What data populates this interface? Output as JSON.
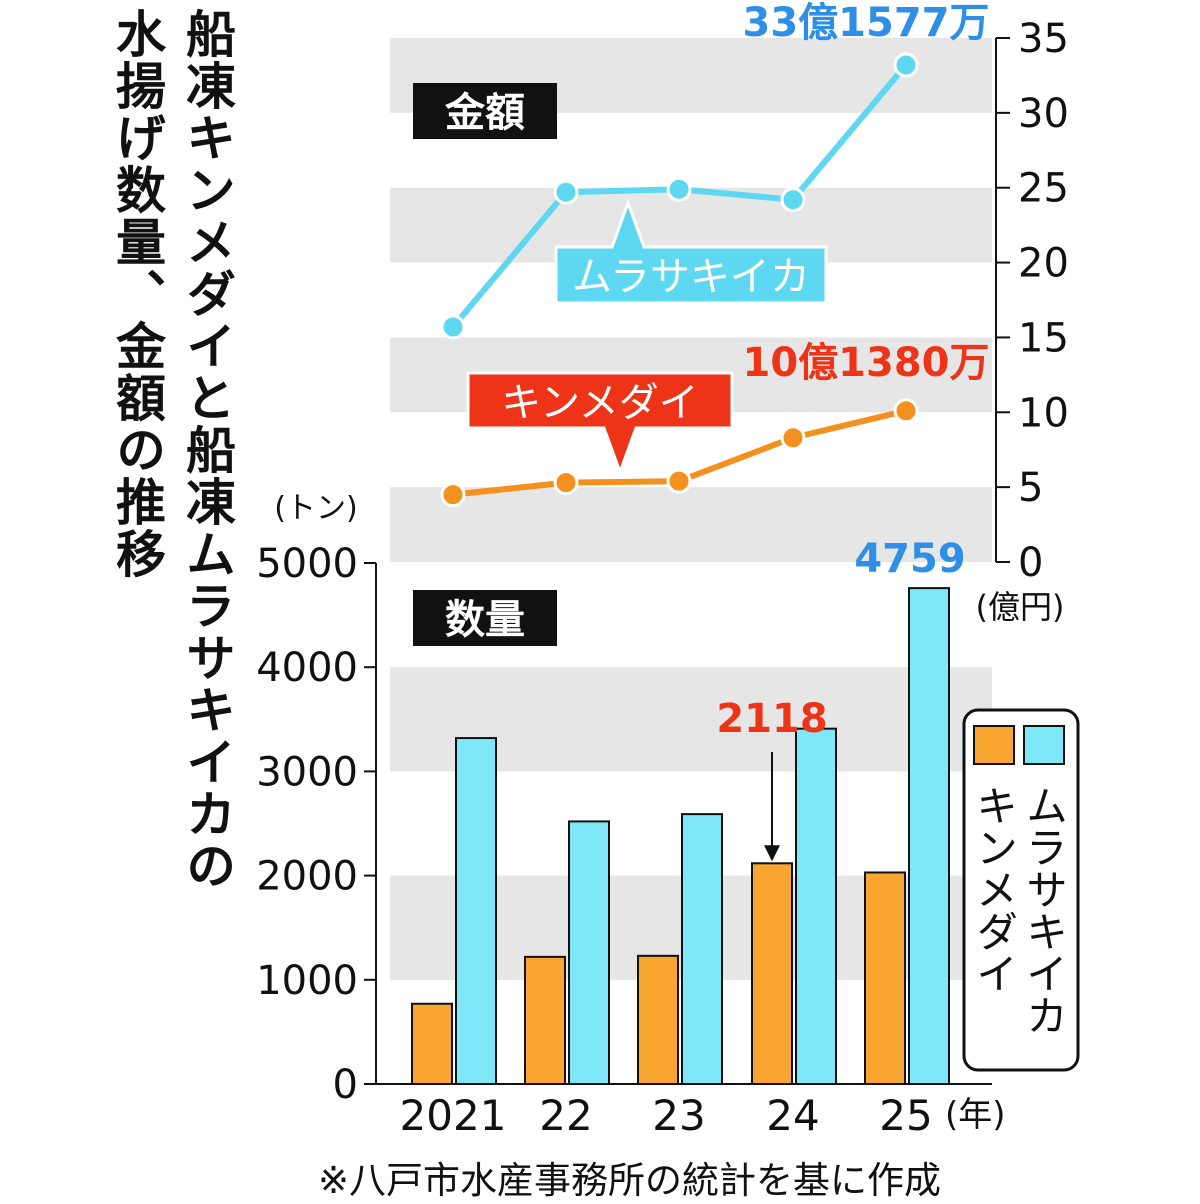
{
  "title_lines": [
    "船凍キンメダイと船凍ムラサキイカの",
    "水揚げ数量、金額の推移"
  ],
  "footnote": "※八戸市水産事務所の統計を基に作成",
  "colors": {
    "squid": "#5ed7f0",
    "squid_bar": "#7fe8f8",
    "kinmedai": "#f4901e",
    "kinmedai_bar": "#f9a532",
    "label_red": "#ee3418",
    "label_blue": "#2f8fe6",
    "band": "#e6e6e6"
  },
  "chart_data": [
    {
      "type": "line",
      "panel_label": "金額",
      "x": [
        "2021",
        "22",
        "23",
        "24",
        "25"
      ],
      "y_unit": "(億円)",
      "ylim": [
        0,
        35
      ],
      "y_ticks": [
        "0",
        "5",
        "10",
        "15",
        "20",
        "25",
        "30",
        "35"
      ],
      "series": [
        {
          "name": "ムラサキイカ",
          "values": [
            15.7,
            24.7,
            24.9,
            24.2,
            33.2
          ],
          "end_label": "33億1577万"
        },
        {
          "name": "キンメダイ",
          "values": [
            4.5,
            5.3,
            5.4,
            8.3,
            10.1
          ],
          "end_label": "10億1380万"
        }
      ]
    },
    {
      "type": "bar",
      "panel_label": "数量",
      "categories": [
        "2021",
        "22",
        "23",
        "24",
        "25"
      ],
      "x_unit": "(年)",
      "y_unit": "(トン)",
      "ylim": [
        0,
        5000
      ],
      "y_ticks": [
        "0",
        "1000",
        "2000",
        "3000",
        "4000",
        "5000"
      ],
      "series": [
        {
          "name": "キンメダイ",
          "values": [
            770,
            1220,
            1230,
            2118,
            2030
          ]
        },
        {
          "name": "ムラサキイカ",
          "values": [
            3320,
            2520,
            2590,
            3410,
            4759
          ]
        }
      ],
      "annotations": [
        {
          "series": "キンメダイ",
          "category": "24",
          "text": "2118"
        },
        {
          "series": "ムラサキイカ",
          "category": "25",
          "text": "4759"
        }
      ],
      "legend": {
        "position": "right",
        "items": [
          "キンメダイ",
          "ムラサキイカ"
        ]
      }
    }
  ]
}
